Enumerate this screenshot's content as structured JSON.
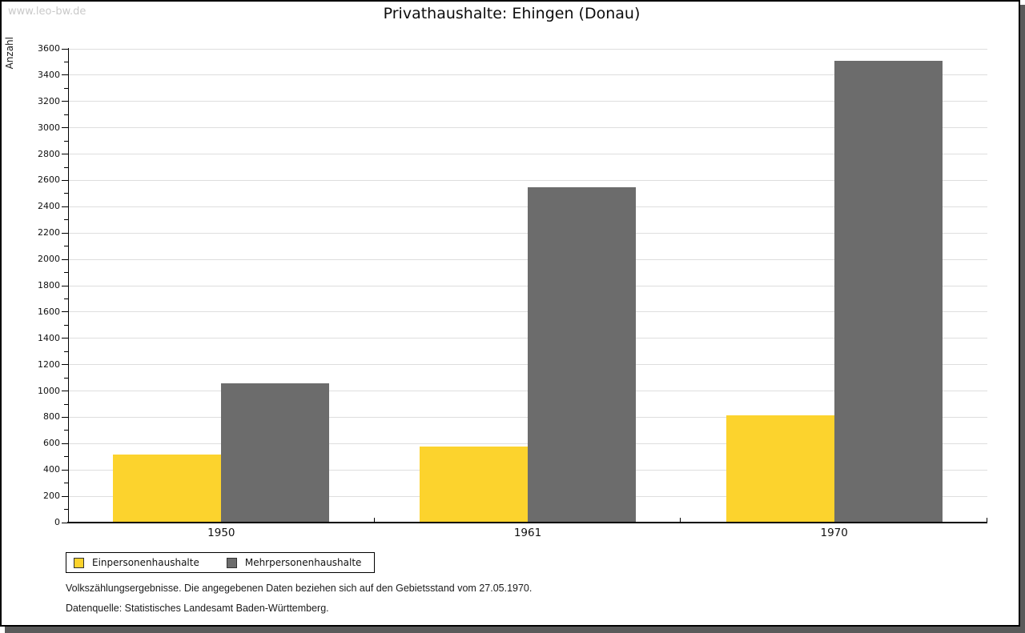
{
  "page": {
    "watermark": "www.leo-bw.de"
  },
  "chart_data": {
    "type": "bar",
    "title": "Privathaushalte: Ehingen (Donau)",
    "xlabel": "",
    "ylabel": "Anzahl",
    "categories": [
      "1950",
      "1961",
      "1970"
    ],
    "series": [
      {
        "name": "Einpersonenhaushalte",
        "color": "#FCD32D",
        "values": [
          515,
          580,
          815
        ]
      },
      {
        "name": "Mehrpersonenhaushalte",
        "color": "#6C6C6C",
        "values": [
          1060,
          2550,
          3510
        ]
      }
    ],
    "ylim": [
      0,
      3600
    ],
    "ytick_step": 200,
    "yminor_step": 100,
    "grid": true,
    "grid_color": "#dedede",
    "legend_position": "bottom-left"
  },
  "footer": {
    "line1": "Volkszählungsergebnisse. Die angegebenen Daten beziehen sich auf den Gebietsstand vom 27.05.1970.",
    "line2": "Datenquelle: Statistisches Landesamt Baden-Württemberg."
  }
}
